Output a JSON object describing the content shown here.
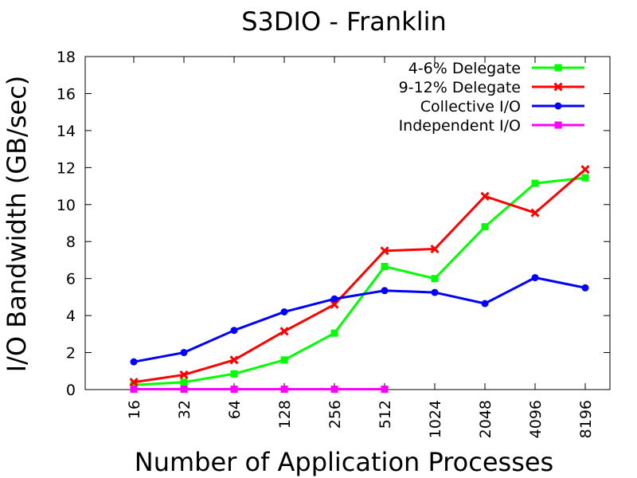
{
  "chart_data": {
    "type": "line",
    "title": "S3DIO - Franklin",
    "xlabel": "Number of Application Processes",
    "ylabel": "I/O Bandwidth (GB/sec)",
    "categories": [
      "16",
      "32",
      "64",
      "128",
      "256",
      "512",
      "1024",
      "2048",
      "4096",
      "8196"
    ],
    "ylim": [
      0,
      18
    ],
    "yticks": [
      "0",
      "2",
      "4",
      "6",
      "8",
      "10",
      "12",
      "14",
      "16",
      "18"
    ],
    "grid": false,
    "legend": "top-right",
    "series": [
      {
        "name": "4-6% Delegate",
        "color": "#00ff00",
        "marker": "square",
        "values": [
          0.25,
          0.4,
          0.85,
          1.6,
          3.05,
          6.65,
          6.0,
          8.8,
          11.15,
          11.45
        ]
      },
      {
        "name": "9-12% Delegate",
        "color": "#ff0000",
        "marker": "x",
        "values": [
          0.4,
          0.8,
          1.6,
          3.15,
          4.6,
          7.5,
          7.6,
          10.45,
          9.55,
          11.9
        ]
      },
      {
        "name": "Collective I/O",
        "color": "#0000ff",
        "marker": "circle",
        "values": [
          1.5,
          2.0,
          3.2,
          4.2,
          4.9,
          5.35,
          5.25,
          4.65,
          6.05,
          5.5
        ]
      },
      {
        "name": "Independent I/O",
        "color": "#ff00ff",
        "marker": "square",
        "values": [
          0.02,
          0.02,
          0.02,
          0.02,
          0.02,
          0.02,
          null,
          null,
          null,
          null
        ]
      }
    ]
  }
}
